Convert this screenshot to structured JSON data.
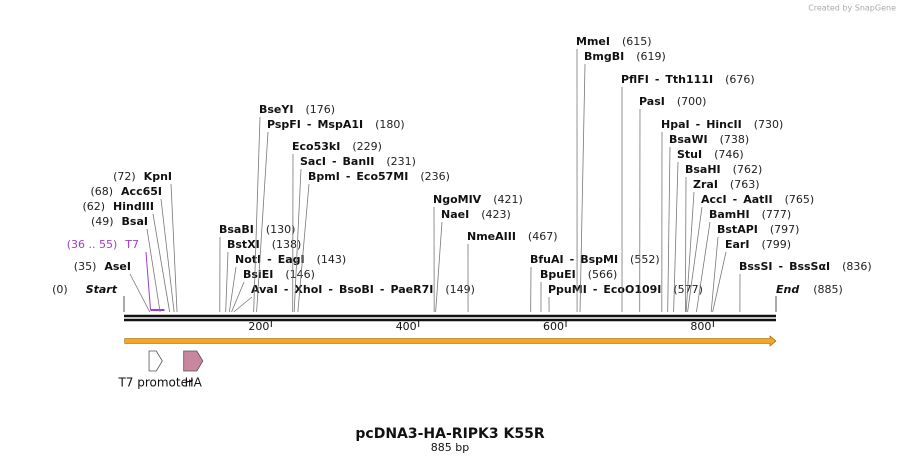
{
  "credit": "Created by SnapGene",
  "title": "pcDNA3-HA-RIPK3 K55R",
  "length": 885,
  "length_label": "885 bp",
  "ruler_ticks": [
    200,
    400,
    600,
    800
  ],
  "start": {
    "label": "Start",
    "position": 0,
    "position_label": "(0)"
  },
  "end": {
    "label": "End",
    "position": 885,
    "position_label": "(885)"
  },
  "primer": {
    "label": "T7",
    "range_label": "(36 .. 55)",
    "start": 36,
    "end": 55,
    "color": "#9b3fd1"
  },
  "orf_bar": {
    "start": 1,
    "end": 885,
    "color": "#f5a623"
  },
  "features": [
    {
      "name": "T7 promoter",
      "start": 34,
      "end": 52,
      "color": "#ffffff"
    },
    {
      "name": "HA",
      "start": 81,
      "end": 107,
      "color": "#c9879f"
    }
  ],
  "sites": [
    {
      "names": [
        "AseI"
      ],
      "position": 35,
      "position_label": "(35)"
    },
    {
      "names": [
        "BsaI"
      ],
      "position": 49,
      "position_label": "(49)"
    },
    {
      "names": [
        "HindIII"
      ],
      "position": 62,
      "position_label": "(62)"
    },
    {
      "names": [
        "Acc65I"
      ],
      "position": 68,
      "position_label": "(68)"
    },
    {
      "names": [
        "KpnI"
      ],
      "position": 72,
      "position_label": "(72)"
    },
    {
      "names": [
        "BsaBI"
      ],
      "position": 130,
      "position_label": "(130)"
    },
    {
      "names": [
        "BstXI"
      ],
      "position": 138,
      "position_label": "(138)"
    },
    {
      "names": [
        "NotI",
        "EagI"
      ],
      "position": 143,
      "position_label": "(143)"
    },
    {
      "names": [
        "BsiEI"
      ],
      "position": 146,
      "position_label": "(146)"
    },
    {
      "names": [
        "AvaI",
        "XhoI",
        "BsoBI",
        "PaeR7I"
      ],
      "position": 149,
      "position_label": "(149)"
    },
    {
      "names": [
        "BseYI"
      ],
      "position": 176,
      "position_label": "(176)"
    },
    {
      "names": [
        "PspFI",
        "MspA1I"
      ],
      "position": 180,
      "position_label": "(180)"
    },
    {
      "names": [
        "Eco53kI"
      ],
      "position": 229,
      "position_label": "(229)"
    },
    {
      "names": [
        "SacI",
        "BanII"
      ],
      "position": 231,
      "position_label": "(231)"
    },
    {
      "names": [
        "BpmI",
        "Eco57MI"
      ],
      "position": 236,
      "position_label": "(236)"
    },
    {
      "names": [
        "NgoMIV"
      ],
      "position": 421,
      "position_label": "(421)"
    },
    {
      "names": [
        "NaeI"
      ],
      "position": 423,
      "position_label": "(423)"
    },
    {
      "names": [
        "NmeAIII"
      ],
      "position": 467,
      "position_label": "(467)"
    },
    {
      "names": [
        "BfuAI",
        "BspMI"
      ],
      "position": 552,
      "position_label": "(552)"
    },
    {
      "names": [
        "BpuEI"
      ],
      "position": 566,
      "position_label": "(566)"
    },
    {
      "names": [
        "PpuMI",
        "EcoO109I"
      ],
      "position": 577,
      "position_label": "(577)"
    },
    {
      "names": [
        "MmeI"
      ],
      "position": 615,
      "position_label": "(615)"
    },
    {
      "names": [
        "BmgBI"
      ],
      "position": 619,
      "position_label": "(619)"
    },
    {
      "names": [
        "PflFI",
        "Tth111I"
      ],
      "position": 676,
      "position_label": "(676)"
    },
    {
      "names": [
        "PasI"
      ],
      "position": 700,
      "position_label": "(700)"
    },
    {
      "names": [
        "HpaI",
        "HincII"
      ],
      "position": 730,
      "position_label": "(730)"
    },
    {
      "names": [
        "BsaWI"
      ],
      "position": 738,
      "position_label": "(738)"
    },
    {
      "names": [
        "StuI"
      ],
      "position": 746,
      "position_label": "(746)"
    },
    {
      "names": [
        "BsaHI"
      ],
      "position": 762,
      "position_label": "(762)"
    },
    {
      "names": [
        "ZraI"
      ],
      "position": 763,
      "position_label": "(763)"
    },
    {
      "names": [
        "AccI",
        "AatII"
      ],
      "position": 765,
      "position_label": "(765)"
    },
    {
      "names": [
        "BamHI"
      ],
      "position": 777,
      "position_label": "(777)"
    },
    {
      "names": [
        "BstAPI"
      ],
      "position": 797,
      "position_label": "(797)"
    },
    {
      "names": [
        "EarI"
      ],
      "position": 799,
      "position_label": "(799)"
    },
    {
      "names": [
        "BssSI",
        "BssSαI"
      ],
      "position": 836,
      "position_label": "(836)"
    }
  ]
}
